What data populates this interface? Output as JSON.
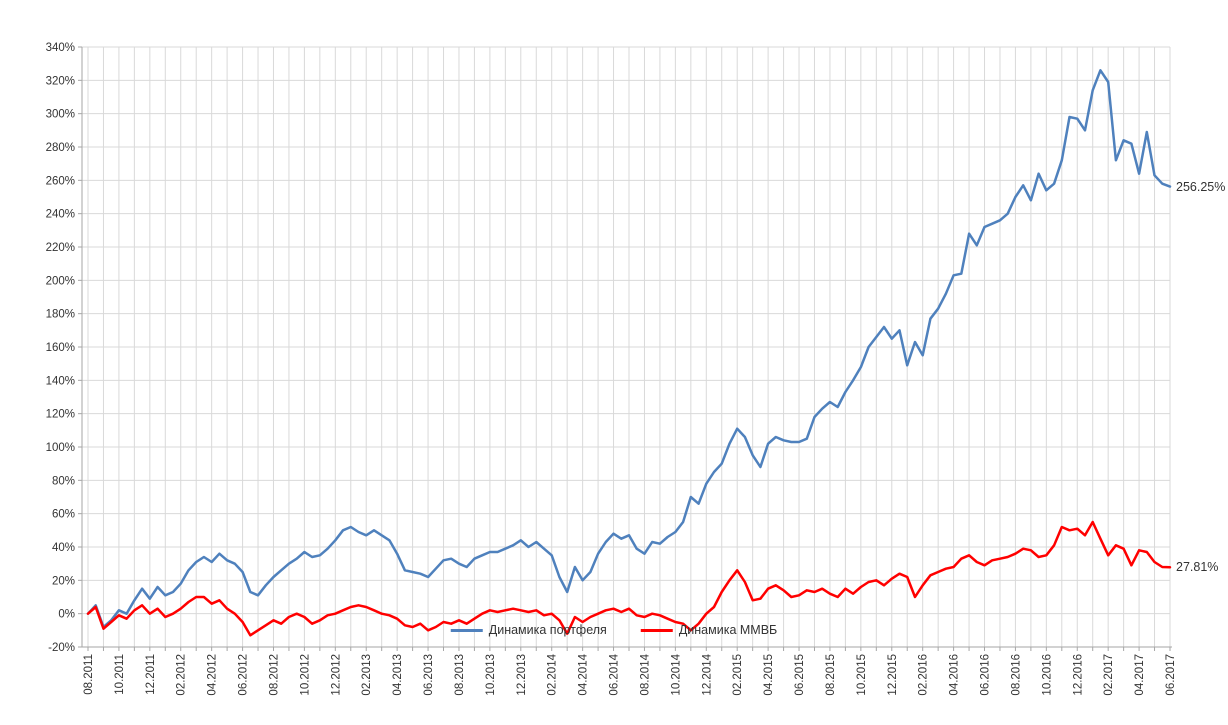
{
  "chart_data": {
    "type": "line",
    "title": "",
    "grid": true,
    "legend_position": "bottom-center",
    "y_axis": {
      "min": -20,
      "max": 340,
      "step": 20,
      "format": "percent",
      "tick_labels": [
        "340%",
        "320%",
        "300%",
        "280%",
        "260%",
        "240%",
        "220%",
        "200%",
        "180%",
        "160%",
        "140%",
        "120%",
        "100%",
        "80%",
        "60%",
        "40%",
        "20%",
        "0%",
        "-20%"
      ]
    },
    "x_axis": {
      "tick_labels": [
        "08.2011",
        "10.2011",
        "12.2011",
        "02.2012",
        "04.2012",
        "06.2012",
        "08.2012",
        "10.2012",
        "12.2012",
        "02.2013",
        "04.2013",
        "06.2013",
        "08.2013",
        "10.2013",
        "12.2013",
        "02.2014",
        "04.2014",
        "06.2014",
        "08.2014",
        "10.2014",
        "12.2014",
        "02.2015",
        "04.2015",
        "06.2015",
        "08.2015",
        "10.2015",
        "12.2015",
        "02.2016",
        "04.2016",
        "06.2016",
        "08.2016",
        "10.2016",
        "12.2016",
        "02.2017",
        "04.2017",
        "06.2017"
      ],
      "months_per_tick": 2,
      "gridline_every_month": true
    },
    "x_step_months": 0.5,
    "colors": {
      "gridline": "#d9d9d9",
      "axis": "#a6a6a6",
      "text": "#333333"
    },
    "series": [
      {
        "name": "Динамика портфеля",
        "color": "#4f81bd",
        "end_label": "256.25%",
        "end_value": 256.25,
        "values": [
          0,
          5,
          -8,
          -4,
          2,
          0,
          8,
          15,
          9,
          16,
          11,
          13,
          18,
          26,
          31,
          34,
          31,
          36,
          32,
          30,
          25,
          13,
          11,
          17,
          22,
          26,
          30,
          33,
          37,
          34,
          35,
          39,
          44,
          50,
          52,
          49,
          47,
          50,
          47,
          44,
          36,
          26,
          25,
          24,
          22,
          27,
          32,
          33,
          30,
          28,
          33,
          35,
          37,
          37,
          39,
          41,
          44,
          40,
          43,
          39,
          35,
          22,
          13,
          28,
          20,
          25,
          36,
          43,
          48,
          45,
          47,
          39,
          36,
          43,
          42,
          46,
          49,
          55,
          70,
          66,
          78,
          85,
          90,
          102,
          111,
          106,
          95,
          88,
          102,
          106,
          104,
          103,
          103,
          105,
          118,
          123,
          127,
          124,
          133,
          140,
          148,
          160,
          166,
          172,
          165,
          170,
          149,
          163,
          155,
          177,
          183,
          192,
          203,
          204,
          228,
          221,
          232,
          234,
          236,
          240,
          250,
          257,
          248,
          264,
          254,
          258,
          272,
          298,
          297,
          290,
          314,
          326,
          319,
          272,
          284,
          282,
          264,
          289,
          263,
          258,
          256.25
        ]
      },
      {
        "name": "Динамика ММВБ",
        "color": "#ff0000",
        "end_label": "27.81%",
        "end_value": 27.81,
        "values": [
          0,
          4,
          -9,
          -5,
          -1,
          -3,
          2,
          5,
          0,
          3,
          -2,
          0,
          3,
          7,
          10,
          10,
          6,
          8,
          3,
          0,
          -5,
          -13,
          -10,
          -7,
          -4,
          -6,
          -2,
          0,
          -2,
          -6,
          -4,
          -1,
          0,
          2,
          4,
          5,
          4,
          2,
          0,
          -1,
          -3,
          -7,
          -8,
          -6,
          -10,
          -8,
          -5,
          -6,
          -4,
          -6,
          -3,
          0,
          2,
          1,
          2,
          3,
          2,
          1,
          2,
          -1,
          0,
          -4,
          -12,
          -2,
          -5,
          -2,
          0,
          2,
          3,
          1,
          3,
          -1,
          -2,
          0,
          -1,
          -3,
          -5,
          -6,
          -10,
          -6,
          0,
          4,
          13,
          20,
          26,
          19,
          8,
          9,
          15,
          17,
          14,
          10,
          11,
          14,
          13,
          15,
          12,
          10,
          15,
          12,
          16,
          19,
          20,
          17,
          21,
          24,
          22,
          10,
          17,
          23,
          25,
          27,
          28,
          33,
          35,
          31,
          29,
          32,
          33,
          34,
          36,
          39,
          38,
          34,
          35,
          41,
          52,
          50,
          51,
          47,
          55,
          45,
          35,
          41,
          39,
          29,
          38,
          37,
          31,
          28,
          27.81
        ]
      }
    ]
  }
}
